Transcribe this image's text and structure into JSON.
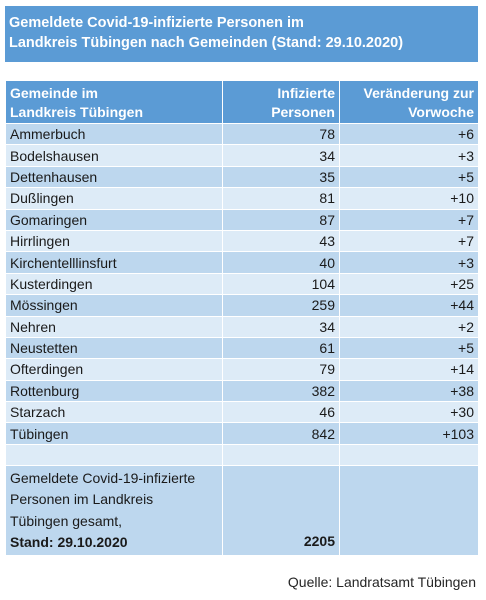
{
  "title": {
    "line1": "Gemeldete Covid-19-infizierte Personen im",
    "line2": "Landkreis Tübingen nach Gemeinden (Stand: 29.10.2020)"
  },
  "header": {
    "col1_line1": "Gemeinde im",
    "col1_line2": "Landkreis Tübingen",
    "col2_line1": "Infizierte",
    "col2_line2": "Personen",
    "col3_line1": "Veränderung zur",
    "col3_line2": "Vorwoche"
  },
  "rows": [
    {
      "gemeinde": "Ammerbuch",
      "infizierte": "78",
      "veraenderung": "+6"
    },
    {
      "gemeinde": "Bodelshausen",
      "infizierte": "34",
      "veraenderung": "+3"
    },
    {
      "gemeinde": "Dettenhausen",
      "infizierte": "35",
      "veraenderung": "+5"
    },
    {
      "gemeinde": "Dußlingen",
      "infizierte": "81",
      "veraenderung": "+10"
    },
    {
      "gemeinde": "Gomaringen",
      "infizierte": "87",
      "veraenderung": "+7"
    },
    {
      "gemeinde": "Hirrlingen",
      "infizierte": "43",
      "veraenderung": "+7"
    },
    {
      "gemeinde": "Kirchentelllinsfurt",
      "infizierte": "40",
      "veraenderung": "+3"
    },
    {
      "gemeinde": "Kusterdingen",
      "infizierte": "104",
      "veraenderung": "+25"
    },
    {
      "gemeinde": "Mössingen",
      "infizierte": "259",
      "veraenderung": "+44"
    },
    {
      "gemeinde": "Nehren",
      "infizierte": "34",
      "veraenderung": "+2"
    },
    {
      "gemeinde": "Neustetten",
      "infizierte": "61",
      "veraenderung": "+5"
    },
    {
      "gemeinde": "Ofterdingen",
      "infizierte": "79",
      "veraenderung": "+14"
    },
    {
      "gemeinde": "Rottenburg",
      "infizierte": "382",
      "veraenderung": "+38"
    },
    {
      "gemeinde": "Starzach",
      "infizierte": "46",
      "veraenderung": "+30"
    },
    {
      "gemeinde": "Tübingen",
      "infizierte": "842",
      "veraenderung": "+103"
    }
  ],
  "total": {
    "label_line1": "Gemeldete Covid-19-infizierte",
    "label_line2": "Personen im Landkreis",
    "label_line3": "Tübingen gesamt,",
    "stand": "Stand: 29.10.2020",
    "sum": "2205"
  },
  "source": "Quelle: Landratsamt Tübingen",
  "colors": {
    "header_blue": "#5b9bd5",
    "row_dark": "#bdd7ee",
    "row_light": "#ddebf7"
  }
}
